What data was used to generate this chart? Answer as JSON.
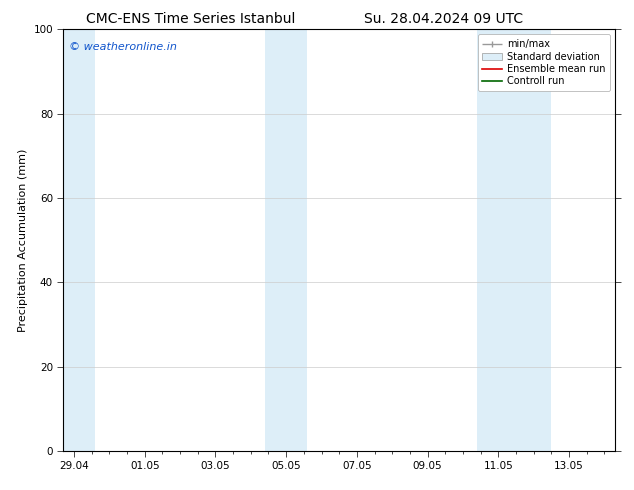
{
  "title_left": "CMC-ENS Time Series Istanbul",
  "title_right": "Su. 28.04.2024 09 UTC",
  "ylabel": "Precipitation Accumulation (mm)",
  "ylim": [
    0,
    100
  ],
  "yticks": [
    0,
    20,
    40,
    60,
    80,
    100
  ],
  "xtick_labels": [
    "29.04",
    "01.05",
    "03.05",
    "05.05",
    "07.05",
    "09.05",
    "11.05",
    "13.05"
  ],
  "xtick_positions": [
    0,
    2,
    4,
    6,
    8,
    10,
    12,
    14
  ],
  "xlim": [
    -0.3,
    15.3
  ],
  "shaded_regions": [
    {
      "x_start": -0.3,
      "x_end": 0.6,
      "color": "#ddeef8"
    },
    {
      "x_start": 5.4,
      "x_end": 6.6,
      "color": "#ddeef8"
    },
    {
      "x_start": 11.4,
      "x_end": 13.5,
      "color": "#ddeef8"
    }
  ],
  "watermark_text": "© weatheronline.in",
  "watermark_color": "#1155cc",
  "watermark_fontsize": 8,
  "legend_labels": [
    "min/max",
    "Standard deviation",
    "Ensemble mean run",
    "Controll run"
  ],
  "legend_colors_line": [
    "#999999",
    "#bbccdd",
    "#dd0000",
    "#006600"
  ],
  "legend_fill_color": "#ddeef8",
  "background_color": "#ffffff",
  "plot_bg_color": "#ffffff",
  "title_fontsize": 10,
  "tick_fontsize": 7.5,
  "label_fontsize": 8,
  "legend_fontsize": 7
}
